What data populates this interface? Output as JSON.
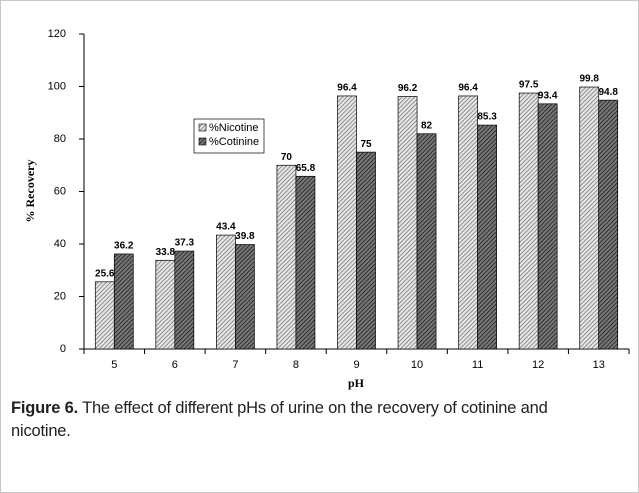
{
  "chart_data": {
    "type": "bar",
    "categories": [
      "5",
      "6",
      "7",
      "8",
      "9",
      "10",
      "11",
      "12",
      "13"
    ],
    "series": [
      {
        "name": "%Nicotine",
        "color": "#7a7a7a",
        "values": [
          25.6,
          33.8,
          43.4,
          70,
          96.4,
          96.2,
          96.4,
          97.5,
          99.8
        ]
      },
      {
        "name": "%Cotinine",
        "color": "#1e1e1e",
        "values": [
          36.2,
          37.3,
          39.8,
          65.8,
          75,
          82,
          85.3,
          93.4,
          94.8
        ]
      }
    ],
    "ylim": [
      0,
      120
    ],
    "yticks": [
      0,
      20,
      40,
      60,
      80,
      100,
      120
    ],
    "xlabel": "pH",
    "ylabel": "% Recovery",
    "legend": "upper left",
    "grid": false
  },
  "caption": {
    "label": "Figure 6.",
    "text": "The effect of different pHs of urine on the recovery of cotinine and nicotine."
  }
}
